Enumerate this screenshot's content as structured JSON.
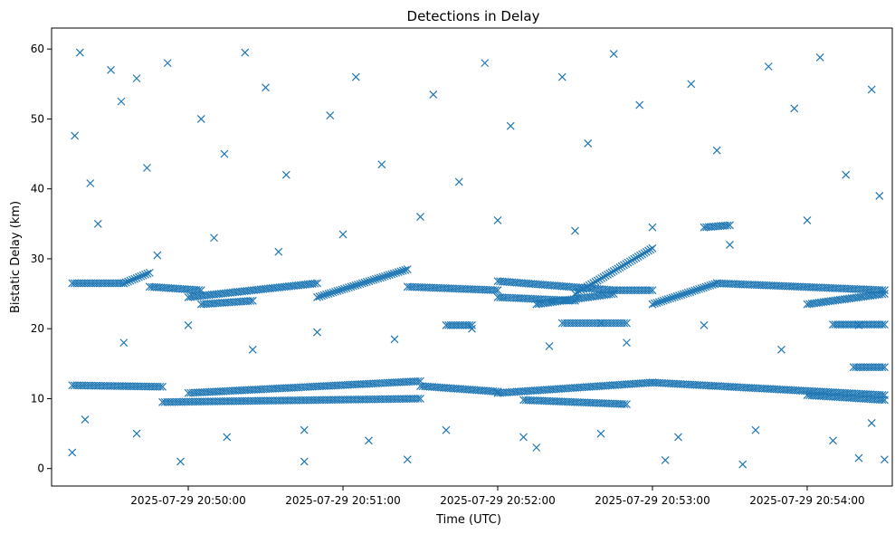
{
  "chart_data": {
    "type": "scatter",
    "title": "Detections in Delay",
    "xlabel": "Time (UTC)",
    "ylabel": "Bistatic Delay (km)",
    "x_tick_labels": [
      "2025-07-29 20:50:00",
      "2025-07-29 20:51:00",
      "2025-07-29 20:52:00",
      "2025-07-29 20:53:00",
      "2025-07-29 20:54:00"
    ],
    "y_tick_labels": [
      "0",
      "10",
      "20",
      "30",
      "40",
      "50",
      "60"
    ],
    "xlim": [
      "2025-07-29 20:49:07",
      "2025-07-29 20:54:33"
    ],
    "ylim": [
      -2.5,
      63
    ],
    "grid": false,
    "marker": "x",
    "color": "#1f77b4",
    "series": [
      {
        "points": [
          [
            "2025-07-29 20:49:15",
            2.3
          ],
          [
            "2025-07-29 20:49:18",
            59.5
          ],
          [
            "2025-07-29 20:49:16",
            47.6
          ],
          [
            "2025-07-29 20:49:22",
            40.8
          ],
          [
            "2025-07-29 20:49:30",
            57.0
          ],
          [
            "2025-07-29 20:49:34",
            52.5
          ],
          [
            "2025-07-29 20:49:40",
            55.8
          ],
          [
            "2025-07-29 20:49:44",
            43.0
          ],
          [
            "2025-07-29 20:49:52",
            58.0
          ],
          [
            "2025-07-29 20:49:57",
            1.0
          ],
          [
            "2025-07-29 20:50:05",
            50.0
          ],
          [
            "2025-07-29 20:50:14",
            45.0
          ],
          [
            "2025-07-29 20:50:22",
            59.5
          ],
          [
            "2025-07-29 20:50:30",
            54.5
          ],
          [
            "2025-07-29 20:50:38",
            42.0
          ],
          [
            "2025-07-29 20:50:45",
            1.0
          ],
          [
            "2025-07-29 20:50:55",
            50.5
          ],
          [
            "2025-07-29 20:51:05",
            56.0
          ],
          [
            "2025-07-29 20:51:15",
            43.5
          ],
          [
            "2025-07-29 20:51:25",
            1.3
          ],
          [
            "2025-07-29 20:51:35",
            53.5
          ],
          [
            "2025-07-29 20:51:45",
            41.0
          ],
          [
            "2025-07-29 20:51:55",
            58.0
          ],
          [
            "2025-07-29 20:52:05",
            49.0
          ],
          [
            "2025-07-29 20:52:15",
            3.0
          ],
          [
            "2025-07-29 20:52:25",
            56.0
          ],
          [
            "2025-07-29 20:52:35",
            46.5
          ],
          [
            "2025-07-29 20:52:45",
            59.3
          ],
          [
            "2025-07-29 20:52:55",
            52.0
          ],
          [
            "2025-07-29 20:53:05",
            1.2
          ],
          [
            "2025-07-29 20:53:15",
            55.0
          ],
          [
            "2025-07-29 20:53:25",
            45.5
          ],
          [
            "2025-07-29 20:53:35",
            0.6
          ],
          [
            "2025-07-29 20:53:45",
            57.5
          ],
          [
            "2025-07-29 20:53:55",
            51.5
          ],
          [
            "2025-07-29 20:54:05",
            58.8
          ],
          [
            "2025-07-29 20:54:15",
            42.0
          ],
          [
            "2025-07-29 20:54:20",
            1.5
          ],
          [
            "2025-07-29 20:54:25",
            54.2
          ],
          [
            "2025-07-29 20:54:30",
            1.3
          ],
          [
            "2025-07-29 20:49:25",
            35.0
          ],
          [
            "2025-07-29 20:49:48",
            30.5
          ],
          [
            "2025-07-29 20:50:10",
            33.0
          ],
          [
            "2025-07-29 20:50:35",
            31.0
          ],
          [
            "2025-07-29 20:51:00",
            33.5
          ],
          [
            "2025-07-29 20:51:30",
            36.0
          ],
          [
            "2025-07-29 20:52:00",
            35.5
          ],
          [
            "2025-07-29 20:52:30",
            34.0
          ],
          [
            "2025-07-29 20:53:00",
            34.5
          ],
          [
            "2025-07-29 20:53:30",
            32.0
          ],
          [
            "2025-07-29 20:54:00",
            35.5
          ],
          [
            "2025-07-29 20:54:28",
            39.0
          ],
          [
            "2025-07-29 20:49:35",
            18.0
          ],
          [
            "2025-07-29 20:50:00",
            20.5
          ],
          [
            "2025-07-29 20:50:25",
            17.0
          ],
          [
            "2025-07-29 20:50:50",
            19.5
          ],
          [
            "2025-07-29 20:51:20",
            18.5
          ],
          [
            "2025-07-29 20:51:50",
            20.0
          ],
          [
            "2025-07-29 20:52:20",
            17.5
          ],
          [
            "2025-07-29 20:52:50",
            18.0
          ],
          [
            "2025-07-29 20:53:20",
            20.5
          ],
          [
            "2025-07-29 20:53:50",
            17.0
          ],
          [
            "2025-07-29 20:54:20",
            20.5
          ],
          [
            "2025-07-29 20:52:40",
            20.8
          ],
          [
            "2025-07-29 20:49:40",
            5.0
          ],
          [
            "2025-07-29 20:50:15",
            4.5
          ],
          [
            "2025-07-29 20:50:45",
            5.5
          ],
          [
            "2025-07-29 20:51:10",
            4.0
          ],
          [
            "2025-07-29 20:51:40",
            5.5
          ],
          [
            "2025-07-29 20:52:10",
            4.5
          ],
          [
            "2025-07-29 20:52:40",
            5.0
          ],
          [
            "2025-07-29 20:53:10",
            4.5
          ],
          [
            "2025-07-29 20:53:40",
            5.5
          ],
          [
            "2025-07-29 20:54:10",
            4.0
          ],
          [
            "2025-07-29 20:49:20",
            7.0
          ],
          [
            "2025-07-29 20:54:25",
            6.5
          ]
        ],
        "tracks": [
          {
            "from": [
              "2025-07-29 20:49:15",
              11.9
            ],
            "to": [
              "2025-07-29 20:49:50",
              11.7
            ]
          },
          {
            "from": [
              "2025-07-29 20:49:50",
              9.5
            ],
            "to": [
              "2025-07-29 20:51:30",
              10.0
            ]
          },
          {
            "from": [
              "2025-07-29 20:50:00",
              10.8
            ],
            "to": [
              "2025-07-29 20:51:30",
              12.5
            ]
          },
          {
            "from": [
              "2025-07-29 20:51:30",
              11.8
            ],
            "to": [
              "2025-07-29 20:52:00",
              11.0
            ]
          },
          {
            "from": [
              "2025-07-29 20:52:00",
              10.8
            ],
            "to": [
              "2025-07-29 20:53:00",
              12.3
            ]
          },
          {
            "from": [
              "2025-07-29 20:53:00",
              12.3
            ],
            "to": [
              "2025-07-29 20:54:30",
              10.5
            ]
          },
          {
            "from": [
              "2025-07-29 20:52:10",
              9.8
            ],
            "to": [
              "2025-07-29 20:52:50",
              9.2
            ]
          },
          {
            "from": [
              "2025-07-29 20:54:00",
              10.5
            ],
            "to": [
              "2025-07-29 20:54:30",
              9.8
            ]
          },
          {
            "from": [
              "2025-07-29 20:54:18",
              14.5
            ],
            "to": [
              "2025-07-29 20:54:30",
              14.5
            ]
          },
          {
            "from": [
              "2025-07-29 20:49:15",
              26.5
            ],
            "to": [
              "2025-07-29 20:49:35",
              26.5
            ]
          },
          {
            "from": [
              "2025-07-29 20:49:35",
              26.5
            ],
            "to": [
              "2025-07-29 20:49:45",
              28.0
            ]
          },
          {
            "from": [
              "2025-07-29 20:49:45",
              26.0
            ],
            "to": [
              "2025-07-29 20:50:05",
              25.5
            ]
          },
          {
            "from": [
              "2025-07-29 20:50:05",
              23.5
            ],
            "to": [
              "2025-07-29 20:50:25",
              24.0
            ]
          },
          {
            "from": [
              "2025-07-29 20:50:00",
              24.5
            ],
            "to": [
              "2025-07-29 20:50:50",
              26.5
            ]
          },
          {
            "from": [
              "2025-07-29 20:50:50",
              24.5
            ],
            "to": [
              "2025-07-29 20:51:25",
              28.5
            ]
          },
          {
            "from": [
              "2025-07-29 20:51:25",
              26.0
            ],
            "to": [
              "2025-07-29 20:52:00",
              25.5
            ]
          },
          {
            "from": [
              "2025-07-29 20:52:00",
              24.5
            ],
            "to": [
              "2025-07-29 20:52:30",
              24.0
            ]
          },
          {
            "from": [
              "2025-07-29 20:52:00",
              26.8
            ],
            "to": [
              "2025-07-29 20:52:45",
              25.5
            ]
          },
          {
            "from": [
              "2025-07-29 20:52:15",
              23.5
            ],
            "to": [
              "2025-07-29 20:52:45",
              25.0
            ]
          },
          {
            "from": [
              "2025-07-29 20:52:30",
              25.0
            ],
            "to": [
              "2025-07-29 20:53:00",
              31.5
            ]
          },
          {
            "from": [
              "2025-07-29 20:52:45",
              25.5
            ],
            "to": [
              "2025-07-29 20:53:00",
              25.5
            ]
          },
          {
            "from": [
              "2025-07-29 20:53:00",
              23.5
            ],
            "to": [
              "2025-07-29 20:53:25",
              26.5
            ]
          },
          {
            "from": [
              "2025-07-29 20:53:25",
              26.5
            ],
            "to": [
              "2025-07-29 20:54:30",
              25.5
            ]
          },
          {
            "from": [
              "2025-07-29 20:54:00",
              23.5
            ],
            "to": [
              "2025-07-29 20:54:30",
              25.0
            ]
          },
          {
            "from": [
              "2025-07-29 20:52:25",
              20.8
            ],
            "to": [
              "2025-07-29 20:52:50",
              20.8
            ]
          },
          {
            "from": [
              "2025-07-29 20:54:10",
              20.6
            ],
            "to": [
              "2025-07-29 20:54:30",
              20.6
            ]
          },
          {
            "from": [
              "2025-07-29 20:53:20",
              34.5
            ],
            "to": [
              "2025-07-29 20:53:30",
              34.8
            ]
          },
          {
            "from": [
              "2025-07-29 20:51:40",
              20.5
            ],
            "to": [
              "2025-07-29 20:51:50",
              20.5
            ]
          }
        ]
      }
    ]
  }
}
